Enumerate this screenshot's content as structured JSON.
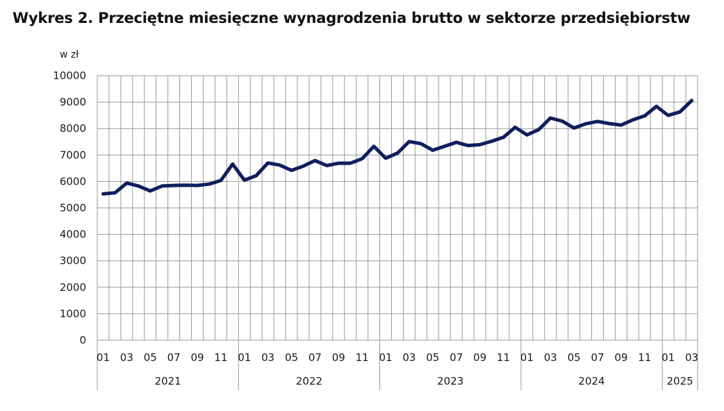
{
  "title": "Wykres 2. Przeciętne miesięczne wynagrodzenia brutto w sektorze przedsiębiorstw",
  "chart_data": {
    "type": "line",
    "unit_label": "w zł",
    "ylim": [
      0,
      10000
    ],
    "y_ticks": [
      0,
      1000,
      2000,
      3000,
      4000,
      5000,
      6000,
      7000,
      8000,
      9000,
      10000
    ],
    "grid": true,
    "months": [
      "01",
      "02",
      "03",
      "04",
      "05",
      "06",
      "07",
      "08",
      "09",
      "10",
      "11",
      "12",
      "01",
      "02",
      "03",
      "04",
      "05",
      "06",
      "07",
      "08",
      "09",
      "10",
      "11",
      "12",
      "01",
      "02",
      "03",
      "04",
      "05",
      "06",
      "07",
      "08",
      "09",
      "10",
      "11",
      "12",
      "01",
      "02",
      "03",
      "04",
      "05",
      "06",
      "07",
      "08",
      "09",
      "10",
      "11",
      "12",
      "01",
      "02",
      "03"
    ],
    "month_labels": [
      "01",
      "",
      "03",
      "",
      "05",
      "",
      "07",
      "",
      "09",
      "",
      "11",
      "",
      "01",
      "",
      "03",
      "",
      "05",
      "",
      "07",
      "",
      "09",
      "",
      "11",
      "",
      "01",
      "",
      "03",
      "",
      "05",
      "",
      "07",
      "",
      "09",
      "",
      "11",
      "",
      "01",
      "",
      "03",
      "",
      "05",
      "",
      "07",
      "",
      "09",
      "",
      "11",
      "",
      "01",
      "",
      "03"
    ],
    "years": [
      {
        "label": "2021",
        "months": 12
      },
      {
        "label": "2022",
        "months": 12
      },
      {
        "label": "2023",
        "months": 12
      },
      {
        "label": "2024",
        "months": 12
      },
      {
        "label": "2025",
        "months": 3
      }
    ],
    "series": [
      {
        "color": "#0f1f5c",
        "values": [
          5530,
          5570,
          5940,
          5830,
          5640,
          5830,
          5850,
          5860,
          5850,
          5900,
          6040,
          6660,
          6050,
          6220,
          6700,
          6620,
          6420,
          6580,
          6790,
          6600,
          6690,
          6690,
          6860,
          7330,
          6880,
          7070,
          7510,
          7430,
          7180,
          7330,
          7480,
          7360,
          7390,
          7520,
          7670,
          8050,
          7760,
          7960,
          8400,
          8280,
          8020,
          8180,
          8270,
          8190,
          8130,
          8330,
          8480,
          8840,
          8500,
          8630,
          9060
        ]
      }
    ]
  }
}
